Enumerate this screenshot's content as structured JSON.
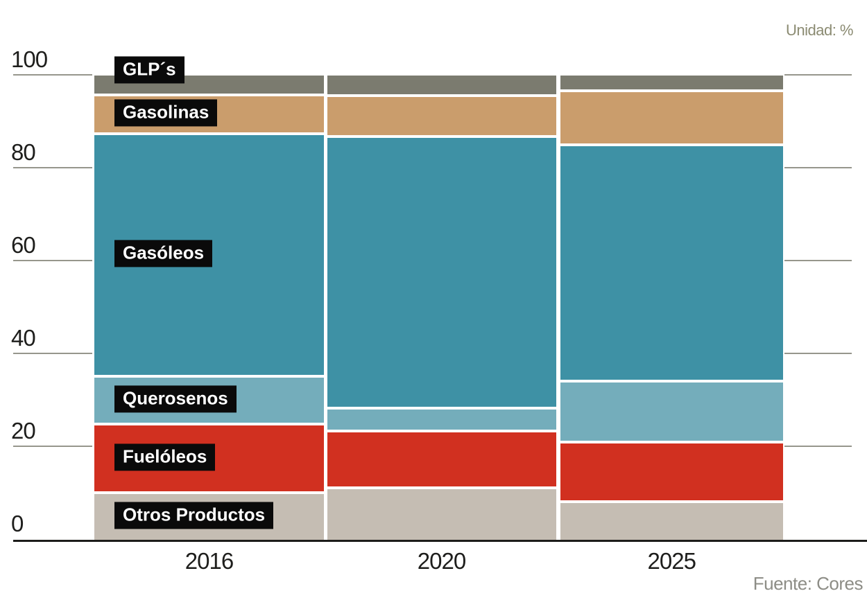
{
  "chart_data": {
    "type": "bar",
    "stacked": true,
    "title": "",
    "unit_label": "Unidad: %",
    "source": "Fuente: Cores",
    "categories": [
      "2016",
      "2020",
      "2025"
    ],
    "series_order": "top-to-bottom",
    "series": [
      {
        "name": "GLP´s",
        "color": "#7b7b6f",
        "values": [
          4.0,
          4.1,
          3.1
        ]
      },
      {
        "name": "Gasolinas",
        "color": "#ca9d6c",
        "values": [
          8.3,
          8.8,
          11.6
        ]
      },
      {
        "name": "Gasóleos",
        "color": "#3e91a5",
        "values": [
          52.2,
          58.4,
          50.9
        ]
      },
      {
        "name": "Querosenos",
        "color": "#74adbb",
        "values": [
          10.3,
          5.0,
          13.1
        ]
      },
      {
        "name": "Fuelóleos",
        "color": "#d13020",
        "values": [
          14.8,
          12.2,
          12.8
        ]
      },
      {
        "name": "Otros Productos",
        "color": "#c5bdb3",
        "values": [
          10.4,
          11.5,
          8.5
        ]
      }
    ],
    "y_axis": {
      "ticks": [
        0,
        20,
        40,
        60,
        80,
        100
      ],
      "tick_labels": [
        "0",
        "20",
        "40",
        "60",
        "80",
        "100"
      ],
      "ylim": [
        0,
        100
      ],
      "grid": "tick-stubs-left-and-right"
    },
    "xlabel": "",
    "ylabel": "",
    "legend": "inline-black-label-boxes",
    "colors": {
      "label_box_bg": "#0a0a0a",
      "label_box_text": "#ffffff",
      "axis_text": "#1e1e1c",
      "grid_stub": "#96968c",
      "baseline": "#1c1c1a",
      "unit_label_text": "#8b8b72",
      "source_text": "#8d8d86"
    }
  }
}
